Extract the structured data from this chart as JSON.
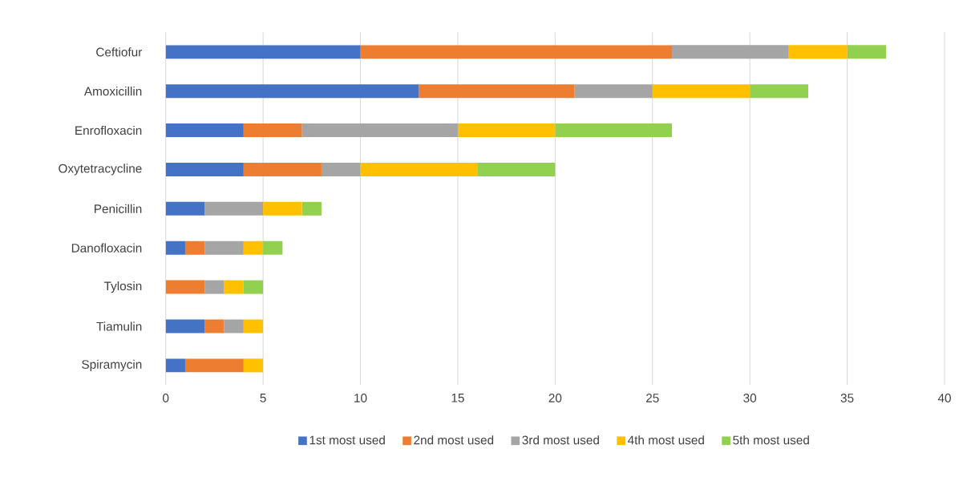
{
  "chart_data": {
    "type": "bar",
    "orientation": "horizontal",
    "stacked": true,
    "categories": [
      "Ceftiofur",
      "Amoxicillin",
      "Enrofloxacin",
      "Oxytetracycline",
      "Penicillin",
      "Danofloxacin",
      "Tylosin",
      "Tiamulin",
      "Spiramycin"
    ],
    "series": [
      {
        "name": "1st most used",
        "color": "#4472c4",
        "values": [
          10,
          13,
          4,
          4,
          2,
          1,
          0,
          2,
          1
        ]
      },
      {
        "name": "2nd most used",
        "color": "#ed7d31",
        "values": [
          16,
          8,
          3,
          4,
          0,
          1,
          2,
          1,
          3
        ]
      },
      {
        "name": "3rd most used",
        "color": "#a5a5a5",
        "values": [
          6,
          4,
          8,
          2,
          3,
          2,
          1,
          1,
          0
        ]
      },
      {
        "name": "4th most used",
        "color": "#ffc000",
        "values": [
          3,
          5,
          5,
          6,
          2,
          1,
          1,
          1,
          1
        ]
      },
      {
        "name": "5th most used",
        "color": "#92d050",
        "values": [
          2,
          3,
          6,
          4,
          1,
          1,
          1,
          0,
          0
        ]
      }
    ],
    "xlim": [
      0,
      40
    ],
    "xticks": [
      0,
      5,
      10,
      15,
      20,
      25,
      30,
      35,
      40
    ],
    "grid": "x",
    "legend": "bottom"
  }
}
